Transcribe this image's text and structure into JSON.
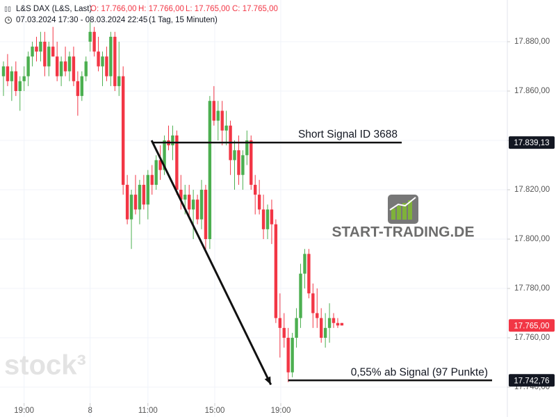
{
  "chart_data": {
    "type": "candlestick",
    "header": {
      "symbol": "L&S DAX (L&S, Last)",
      "ohlc": [
        "O: 17.766,00",
        "H: 17.766,00",
        "L: 17.765,00",
        "C: 17.765,00"
      ],
      "range": "07.03.2024 17:30 - 08.03.2024 22:45",
      "period": "(1 Tag, 15 Minuten)"
    },
    "watermarks": [
      "stock³",
      "START-TRADING.DE"
    ],
    "up_color": "#4caf50",
    "down_color": "#f23645",
    "xlim": [
      -0.84,
      122.1
    ],
    "xticks": [
      {
        "value": 5,
        "label": "19:00"
      },
      {
        "value": 21,
        "label": "8"
      },
      {
        "value": 35,
        "label": "11:00"
      },
      {
        "value": 51.2,
        "label": "15:00"
      },
      {
        "value": 67.2,
        "label": "19:00"
      }
    ],
    "ylim": [
      17727.9,
      17896.9
    ],
    "yticks": [
      {
        "value": 17740,
        "label": "17.740,00"
      },
      {
        "value": 17760,
        "label": "17.760,00"
      },
      {
        "value": 17780,
        "label": "17.780,00"
      },
      {
        "value": 17800,
        "label": "17.800,00"
      },
      {
        "value": 17820,
        "label": "17.820,00"
      },
      {
        "value": 17840,
        "label": "17.840,00"
      },
      {
        "value": 17860,
        "label": "17.860,00"
      },
      {
        "value": 17880,
        "label": "17.880,00"
      }
    ],
    "grid": true,
    "open": [
      17866,
      17870,
      17864,
      17868,
      17860,
      17864,
      17866,
      17874,
      17878,
      17876,
      17880,
      17870,
      17878,
      17874,
      17866,
      17872,
      17868,
      17874,
      17864,
      17858,
      17866,
      17880,
      17884,
      17876,
      17870,
      17874,
      17866,
      17882,
      17862,
      17866,
      17822,
      17808,
      17818,
      17812,
      17822,
      17814,
      17826,
      17822,
      17832,
      17828,
      17840,
      17838,
      17842,
      17820,
      17816,
      17818,
      17812,
      17816,
      17808,
      17820,
      17800,
      17856,
      17848,
      17852,
      17844,
      17846,
      17832,
      17836,
      17826,
      17834,
      17840,
      17822,
      17818,
      17812,
      17804,
      17812,
      17806,
      17768,
      17764,
      17760,
      17746,
      17760,
      17768,
      17786,
      17794,
      17778,
      17770,
      17768,
      17760,
      17764,
      17768,
      17766,
      17766
    ],
    "high": [
      17872,
      17875,
      17870,
      17872,
      17866,
      17870,
      17876,
      17880,
      17882,
      17884,
      17884,
      17880,
      17886,
      17880,
      17874,
      17878,
      17876,
      17878,
      17868,
      17868,
      17874,
      17888,
      17886,
      17882,
      17876,
      17878,
      17884,
      17884,
      17880,
      17870,
      17826,
      17820,
      17826,
      17824,
      17826,
      17828,
      17830,
      17834,
      17838,
      17842,
      17846,
      17846,
      17844,
      17826,
      17822,
      17822,
      17820,
      17818,
      17824,
      17822,
      17858,
      17862,
      17856,
      17856,
      17852,
      17848,
      17840,
      17842,
      17836,
      17844,
      17842,
      17826,
      17824,
      17818,
      17814,
      17816,
      17808,
      17778,
      17770,
      17764,
      17762,
      17772,
      17790,
      17796,
      17796,
      17782,
      17780,
      17772,
      17770,
      17774,
      17770,
      17768,
      17766
    ],
    "low": [
      17858,
      17862,
      17856,
      17858,
      17852,
      17860,
      17862,
      17870,
      17872,
      17872,
      17866,
      17866,
      17874,
      17864,
      17862,
      17866,
      17864,
      17862,
      17850,
      17856,
      17864,
      17876,
      17874,
      17868,
      17862,
      17864,
      17862,
      17860,
      17858,
      17818,
      17806,
      17796,
      17810,
      17806,
      17812,
      17808,
      17818,
      17820,
      17824,
      17826,
      17836,
      17832,
      17818,
      17812,
      17810,
      17808,
      17800,
      17806,
      17804,
      17796,
      17796,
      17846,
      17840,
      17838,
      17838,
      17826,
      17820,
      17822,
      17820,
      17830,
      17820,
      17810,
      17810,
      17800,
      17800,
      17798,
      17766,
      17752,
      17756,
      17742,
      17744,
      17756,
      17764,
      17780,
      17776,
      17764,
      17764,
      17758,
      17756,
      17758,
      17764,
      17764,
      17765
    ],
    "close": [
      17870,
      17864,
      17868,
      17860,
      17864,
      17866,
      17874,
      17878,
      17876,
      17880,
      17870,
      17878,
      17874,
      17866,
      17872,
      17868,
      17874,
      17864,
      17858,
      17866,
      17872,
      17884,
      17876,
      17870,
      17874,
      17866,
      17882,
      17862,
      17866,
      17822,
      17808,
      17818,
      17812,
      17822,
      17814,
      17826,
      17822,
      17832,
      17828,
      17840,
      17838,
      17842,
      17820,
      17816,
      17818,
      17812,
      17816,
      17808,
      17820,
      17800,
      17856,
      17848,
      17852,
      17844,
      17846,
      17832,
      17836,
      17826,
      17834,
      17840,
      17822,
      17818,
      17812,
      17804,
      17812,
      17806,
      17768,
      17764,
      17760,
      17746,
      17760,
      17768,
      17786,
      17794,
      17778,
      17770,
      17768,
      17760,
      17764,
      17768,
      17766,
      17765,
      17765
    ],
    "annotations": [
      {
        "text": "Short Signal  ID 3688",
        "value": 17839.13,
        "label": "17.839,13",
        "x_start": 36,
        "x_end": 96.5
      },
      {
        "text": "0,55% ab Signal (97 Punkte)",
        "value": 17742.76,
        "label": "17.742,76",
        "x_start": 69,
        "x_end": 118.4
      }
    ],
    "arrow": {
      "x": [
        35.9,
        64.8
      ],
      "y": [
        17840,
        17741
      ]
    },
    "last_price": {
      "value": 17765,
      "label": "17.765,00"
    }
  }
}
